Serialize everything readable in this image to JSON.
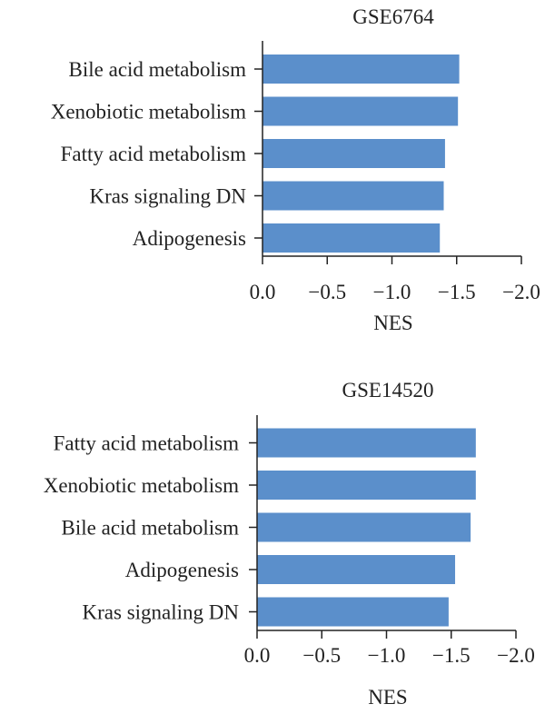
{
  "colors": {
    "bar": "#5b8fcb",
    "axis": "#222222",
    "text": "#222222",
    "highlight_text": "#b0403c"
  },
  "chart_data": [
    {
      "type": "bar",
      "orientation": "horizontal",
      "title": "GSE6764",
      "categories": [
        "Bile acid metabolism",
        "Xenobiotic metabolism",
        "Fatty acid metabolism",
        "Kras signaling DN",
        "Adipogenesis"
      ],
      "values": [
        -1.52,
        -1.51,
        -1.41,
        -1.4,
        -1.37
      ],
      "highlight": [
        "Fatty acid metabolism"
      ],
      "xlabel": "NES",
      "xlim": [
        0,
        -2.0
      ],
      "xticks": [
        "0.0",
        "−0.5",
        "−1.0",
        "−1.5",
        "−2.0"
      ],
      "xtick_values": [
        0,
        -0.5,
        -1.0,
        -1.5,
        -2.0
      ],
      "grid": false
    },
    {
      "type": "bar",
      "orientation": "horizontal",
      "title": "GSE14520",
      "categories": [
        "Fatty acid metabolism",
        "Xenobiotic metabolism",
        "Bile acid metabolism",
        "Adipogenesis",
        "Kras signaling DN"
      ],
      "values": [
        -1.69,
        -1.69,
        -1.65,
        -1.53,
        -1.48
      ],
      "highlight": [
        "Fatty acid metabolism"
      ],
      "xlabel": "NES",
      "xlim": [
        0,
        -2.0
      ],
      "xticks": [
        "0.0",
        "−0.5",
        "−1.0",
        "−1.5",
        "−2.0"
      ],
      "xtick_values": [
        0,
        -0.5,
        -1.0,
        -1.5,
        -2.0
      ],
      "grid": false
    }
  ]
}
